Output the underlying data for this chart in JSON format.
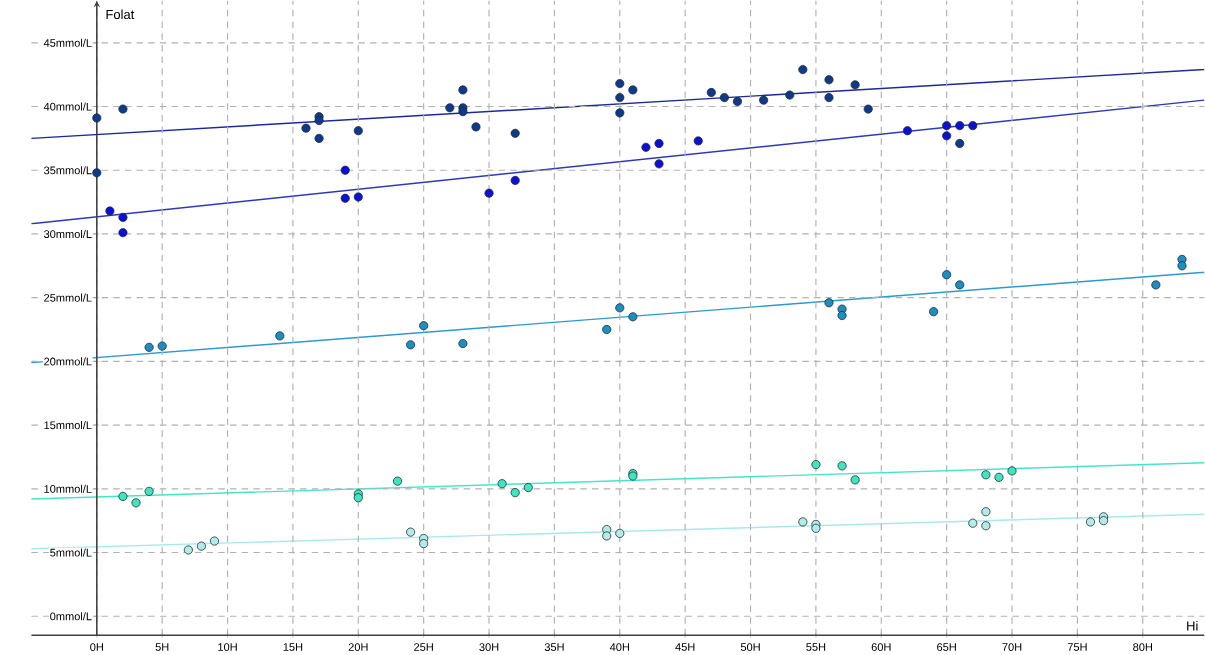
{
  "chart_data": {
    "type": "scatter",
    "xlabel": "Hi",
    "ylabel": "Folat",
    "xlim": [
      -5,
      84.7
    ],
    "ylim": [
      -1.5,
      48.3
    ],
    "xticks": [
      {
        "value": 0,
        "label": "0H"
      },
      {
        "value": 5,
        "label": "5H"
      },
      {
        "value": 10,
        "label": "10H"
      },
      {
        "value": 15,
        "label": "15H"
      },
      {
        "value": 20,
        "label": "20H"
      },
      {
        "value": 25,
        "label": "25H"
      },
      {
        "value": 30,
        "label": "30H"
      },
      {
        "value": 35,
        "label": "35H"
      },
      {
        "value": 40,
        "label": "40H"
      },
      {
        "value": 45,
        "label": "45H"
      },
      {
        "value": 50,
        "label": "50H"
      },
      {
        "value": 55,
        "label": "55H"
      },
      {
        "value": 60,
        "label": "60H"
      },
      {
        "value": 65,
        "label": "65H"
      },
      {
        "value": 70,
        "label": "70H"
      },
      {
        "value": 75,
        "label": "75H"
      },
      {
        "value": 80,
        "label": "80H"
      }
    ],
    "yticks": [
      {
        "value": 0,
        "label": "0mmol/L"
      },
      {
        "value": 5,
        "label": "5mmol/L"
      },
      {
        "value": 10,
        "label": "10mmol/L"
      },
      {
        "value": 15,
        "label": "15mmol/L"
      },
      {
        "value": 20,
        "label": "20mmol/L"
      },
      {
        "value": 25,
        "label": "25mmol/L"
      },
      {
        "value": 30,
        "label": "30mmol/L"
      },
      {
        "value": 35,
        "label": "35mmol/L"
      },
      {
        "value": 40,
        "label": "40mmol/L"
      },
      {
        "value": 45,
        "label": "45mmol/L"
      }
    ],
    "grid": true,
    "marker": "circle",
    "series": [
      {
        "color": "#0b3a8e",
        "x": [
          0,
          0,
          2,
          16,
          17,
          17,
          17,
          20,
          27,
          28,
          28,
          28,
          29,
          32,
          40,
          40,
          40,
          41,
          47,
          48,
          49,
          51,
          53,
          54,
          56,
          56,
          58,
          59,
          66
        ],
        "values": [
          39.1,
          34.8,
          39.8,
          38.3,
          39.2,
          38.9,
          37.5,
          38.1,
          39.9,
          41.3,
          39.9,
          39.6,
          38.4,
          37.9,
          41.8,
          40.7,
          39.5,
          41.3,
          41.1,
          40.7,
          40.4,
          40.5,
          40.9,
          42.9,
          42.1,
          40.7,
          41.7,
          39.8,
          37.1
        ]
      },
      {
        "color": "#0a10d8",
        "x": [
          1,
          2,
          2,
          19,
          19,
          20,
          30,
          32,
          42,
          43,
          43,
          46,
          62,
          65,
          65,
          66,
          67
        ],
        "values": [
          31.8,
          31.3,
          30.1,
          35.0,
          32.8,
          32.9,
          33.2,
          34.2,
          36.8,
          37.1,
          35.5,
          37.3,
          38.1,
          38.5,
          37.7,
          38.5,
          38.5
        ]
      },
      {
        "color": "#1a8fc2",
        "x": [
          4,
          5,
          14,
          24,
          25,
          28,
          39,
          40,
          41,
          56,
          57,
          57,
          64,
          65,
          66,
          81,
          83,
          83
        ],
        "values": [
          21.1,
          21.2,
          22.0,
          21.3,
          22.8,
          21.4,
          22.5,
          24.2,
          23.5,
          24.6,
          24.1,
          23.6,
          23.9,
          26.8,
          26.0,
          26.0,
          28.0,
          27.5
        ]
      },
      {
        "color": "#3de6c0",
        "x": [
          2,
          3,
          4,
          20,
          20,
          23,
          31,
          32,
          33,
          41,
          41,
          55,
          57,
          58,
          68,
          69,
          70
        ],
        "values": [
          9.4,
          8.9,
          9.8,
          9.6,
          9.3,
          10.6,
          10.4,
          9.7,
          10.1,
          11.2,
          11.0,
          11.9,
          11.8,
          10.7,
          11.1,
          10.9,
          11.4
        ]
      },
      {
        "color": "#b2ecea",
        "x": [
          7,
          8,
          9,
          24,
          25,
          25,
          39,
          39,
          40,
          54,
          55,
          55,
          67,
          68,
          68,
          76,
          77,
          77
        ],
        "values": [
          5.2,
          5.5,
          5.9,
          6.6,
          6.1,
          5.7,
          6.8,
          6.3,
          6.5,
          7.4,
          7.2,
          6.9,
          7.3,
          8.2,
          7.1,
          7.4,
          7.8,
          7.5
        ]
      },
      {
        "type": "line",
        "marker": "none",
        "color": "#1a2a9a",
        "x": [
          -5,
          84.7
        ],
        "values": [
          37.5,
          42.9
        ]
      },
      {
        "type": "line",
        "marker": "none",
        "color": "#2a3ab8",
        "x": [
          -5,
          84.7
        ],
        "values": [
          30.8,
          40.5
        ]
      },
      {
        "type": "line",
        "marker": "none",
        "color": "#2a9ad0",
        "x": [
          -5,
          84.7
        ],
        "values": [
          19.9,
          27.0
        ]
      },
      {
        "type": "line",
        "marker": "none",
        "color": "#40e8c8",
        "x": [
          -5,
          84.7
        ],
        "values": [
          9.2,
          12.05
        ]
      },
      {
        "type": "line",
        "marker": "none",
        "color": "#a8eaea",
        "x": [
          -5,
          84.7
        ],
        "values": [
          5.3,
          8.0
        ]
      }
    ]
  }
}
